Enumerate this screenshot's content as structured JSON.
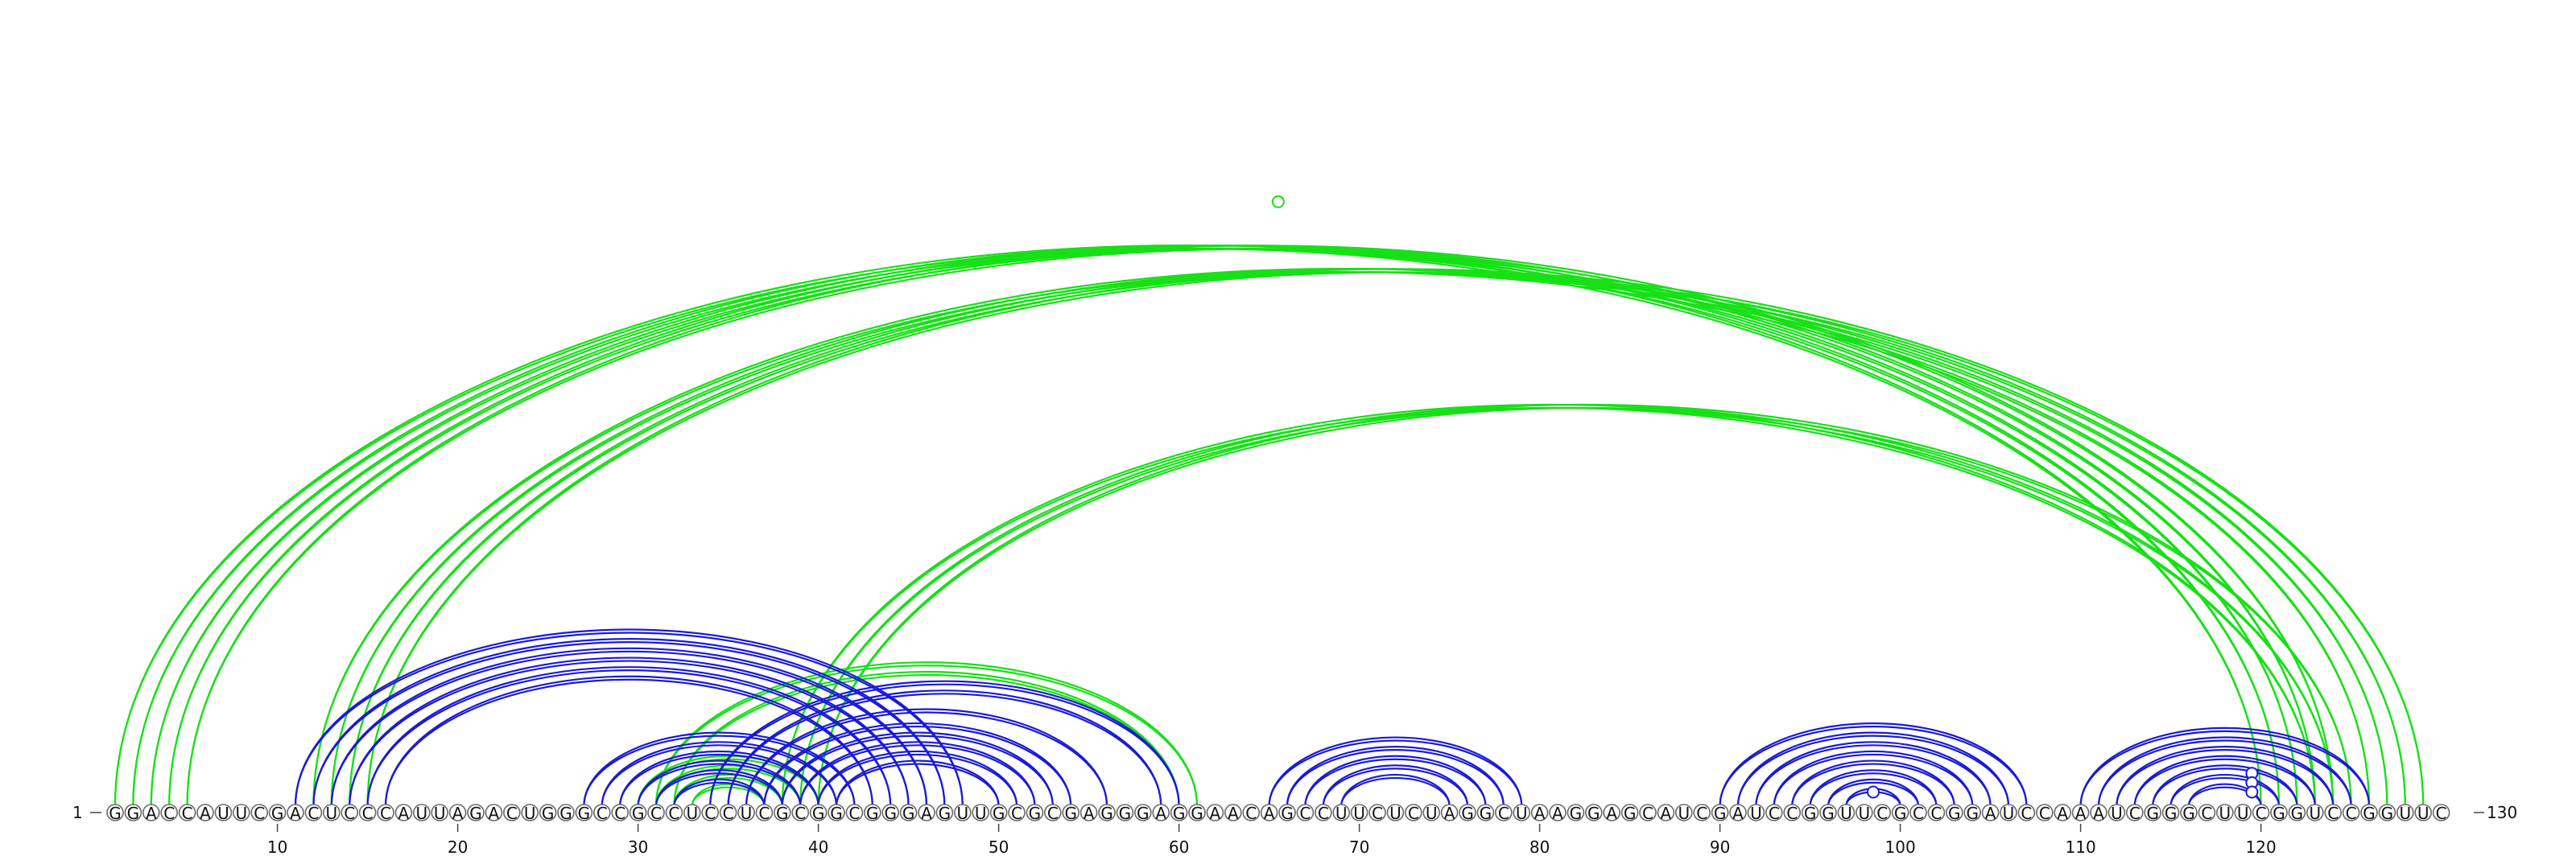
{
  "sequence": "GGACCAUUCGACUCCCAUUAGACUGGGCCGCCUCCUCGCGGCGGGAGUUGCGCGAGGGAGGAACAGCCUUCUCUAGGCUAAGGAGCAUCGAUCCGGUUCGCCGGAUCCAAAUCGGGCUUCGGUCCGGUUC",
  "start_label": "1",
  "end_label": "130",
  "ticks": [
    10,
    20,
    30,
    40,
    50,
    60,
    70,
    80,
    90,
    100,
    110,
    120
  ],
  "colors": {
    "pseudoknot": "#16e016",
    "nested": "#1a1ad6"
  },
  "arc_groups": [
    {
      "color": "pseudoknot",
      "pairs": [
        [
          1,
          120
        ],
        [
          2,
          121
        ],
        [
          3,
          122
        ],
        [
          4,
          123
        ],
        [
          5,
          124
        ]
      ]
    },
    {
      "color": "pseudoknot",
      "pairs": [
        [
          12,
          126
        ],
        [
          13,
          127
        ],
        [
          14,
          128
        ],
        [
          15,
          129
        ]
      ]
    },
    {
      "color": "pseudoknot",
      "pairs": [
        [
          38,
          123
        ],
        [
          39,
          124
        ],
        [
          40,
          125
        ]
      ]
    },
    {
      "color": "pseudoknot",
      "pairs": [
        [
          30,
          40
        ],
        [
          31,
          39
        ],
        [
          32,
          38
        ],
        [
          33,
          37
        ]
      ]
    },
    {
      "color": "pseudoknot",
      "pairs": [
        [
          31,
          61
        ],
        [
          32,
          60
        ]
      ]
    },
    {
      "color": "nested",
      "pairs": [
        [
          11,
          48
        ],
        [
          12,
          47
        ],
        [
          13,
          46
        ],
        [
          14,
          45
        ],
        [
          15,
          44
        ],
        [
          16,
          43
        ]
      ]
    },
    {
      "color": "nested",
      "pairs": [
        [
          27,
          42
        ],
        [
          28,
          41
        ],
        [
          29,
          40
        ],
        [
          30,
          39
        ],
        [
          31,
          38
        ],
        [
          32,
          37
        ]
      ]
    },
    {
      "color": "nested",
      "pairs": [
        [
          34,
          60
        ],
        [
          35,
          59
        ],
        [
          36,
          56
        ],
        [
          37,
          54
        ],
        [
          38,
          53
        ],
        [
          39,
          52
        ],
        [
          40,
          51
        ],
        [
          41,
          50
        ]
      ]
    },
    {
      "color": "nested",
      "pairs": [
        [
          65,
          79
        ],
        [
          66,
          78
        ],
        [
          67,
          77
        ],
        [
          68,
          76
        ],
        [
          69,
          75
        ]
      ]
    },
    {
      "color": "nested",
      "pairs": [
        [
          90,
          107
        ],
        [
          91,
          106
        ],
        [
          92,
          105
        ],
        [
          93,
          104
        ],
        [
          94,
          103
        ],
        [
          95,
          102
        ],
        [
          96,
          101
        ],
        [
          97,
          100
        ]
      ]
    },
    {
      "color": "nested",
      "pairs": [
        [
          110,
          126
        ],
        [
          111,
          125
        ],
        [
          112,
          124
        ],
        [
          113,
          123
        ],
        [
          114,
          122
        ],
        [
          115,
          121
        ],
        [
          116,
          120
        ]
      ]
    }
  ],
  "markers": [
    {
      "color": "pseudoknot",
      "pair": [
        1,
        130
      ]
    },
    {
      "color": "nested",
      "pair": [
        116,
        123
      ]
    },
    {
      "color": "nested",
      "pair": [
        117,
        122
      ]
    },
    {
      "color": "nested",
      "pair": [
        118,
        121
      ]
    },
    {
      "color": "nested",
      "pair": [
        97,
        100
      ]
    }
  ]
}
